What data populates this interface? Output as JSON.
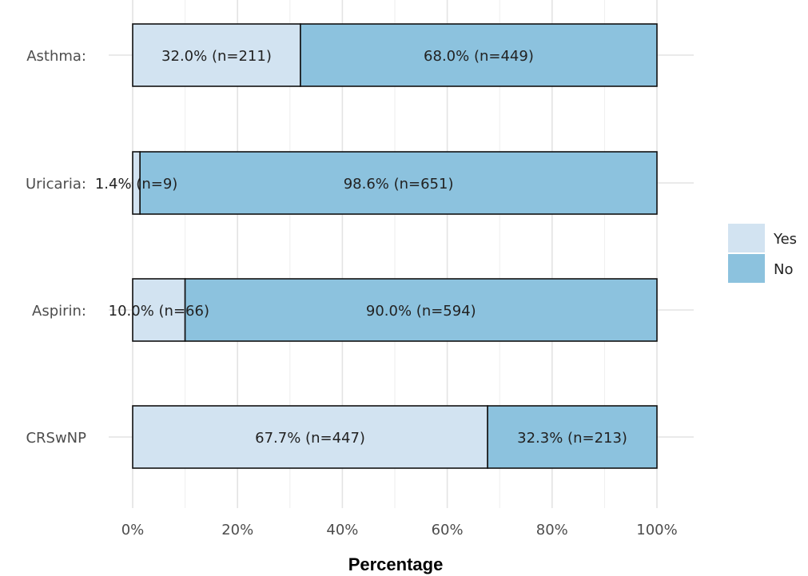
{
  "chart_data": {
    "type": "bar",
    "orientation": "horizontal",
    "stacked": true,
    "percent_stacked": true,
    "categories": [
      "Asthma:",
      "Uricaria:",
      "Aspirin:",
      "CRSwNP"
    ],
    "series": [
      {
        "name": "Yes",
        "color": "#d2e3f1",
        "values": [
          32.0,
          1.4,
          10.0,
          67.7
        ],
        "labels": [
          "32.0% (n=211)",
          "1.4% (n=9)",
          "10.0% (n=66)",
          "67.7% (n=447)"
        ]
      },
      {
        "name": "No",
        "color": "#8cc2de",
        "values": [
          68.0,
          98.6,
          90.0,
          32.3
        ],
        "labels": [
          "68.0% (n=449)",
          "98.6% (n=651)",
          "90.0% (n=594)",
          "32.3% (n=213)"
        ]
      }
    ],
    "xlabel": "Percentage",
    "ylabel": "",
    "xlim": [
      0,
      100
    ],
    "xticks": [
      0,
      20,
      40,
      60,
      80,
      100
    ],
    "xtick_labels": [
      "0%",
      "20%",
      "40%",
      "60%",
      "80%",
      "100%"
    ],
    "grid": true,
    "legend_position": "right"
  }
}
